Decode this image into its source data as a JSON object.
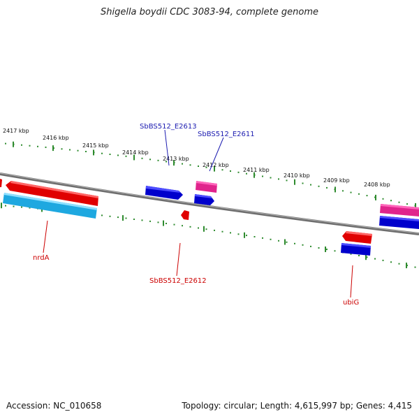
{
  "title": "Shigella boydii CDC 3083-94, complete genome",
  "accession": "Accession: NC_010658",
  "summary": "Topology: circular; Length: 4,615,997 bp; Genes: 4,415",
  "kbp_labels": [
    "2417 kbp",
    "2416 kbp",
    "2415 kbp",
    "2414 kbp",
    "2413 kbp",
    "2412 kbp",
    "2411 kbp",
    "2410 kbp",
    "2409 kbp",
    "2408 kbp"
  ],
  "genes": {
    "nrdA": "nrdA",
    "e2612": "SbBS512_E2612",
    "ubiG": "ubiG",
    "e2613": "SbBS512_E2613",
    "e2611": "SbBS512_E2611"
  },
  "colors": {
    "forward_label": "#1a1ab0",
    "reverse_label": "#cc0000",
    "backbone": "#808080",
    "ticks": "#2e8b2e"
  }
}
